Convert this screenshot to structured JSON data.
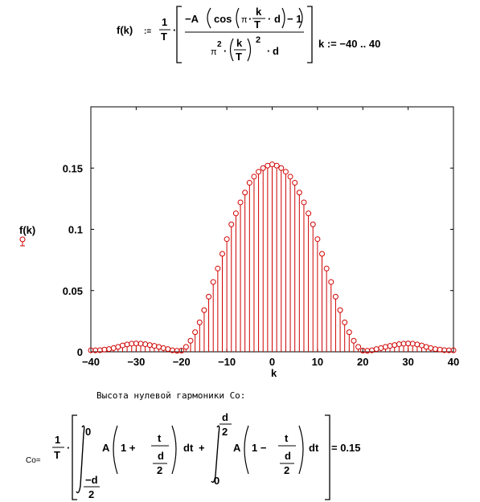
{
  "formula": {
    "fname": "f(k)",
    "assign": ":=",
    "one": "1",
    "T": "T",
    "numer_a": "−A",
    "cos": "cos",
    "pi": "π",
    "k": "k",
    "d": "d",
    "minus_one": "− 1",
    "pi2": "π",
    "exp2": "2",
    "exp2b": "2",
    "range": "k := −40 ..  40"
  },
  "chart_data": {
    "type": "scatter",
    "style": "stem",
    "ylabel": "f(k)",
    "xlabel": "k",
    "xlim": [
      -40,
      40
    ],
    "ylim": [
      0,
      0.2
    ],
    "xticks": [
      "−40",
      "−30",
      "−20",
      "−10",
      "0",
      "10",
      "20",
      "30",
      "40"
    ],
    "yticks": [
      "0",
      "0.05",
      "0.1",
      "0.15"
    ],
    "series": [
      {
        "color": "#d00000",
        "x": [
          -40,
          -39,
          -38,
          -37,
          -36,
          -35,
          -34,
          -33,
          -32,
          -31,
          -30,
          -29,
          -28,
          -27,
          -26,
          -25,
          -24,
          -23,
          -22,
          -21,
          -20,
          -19,
          -18,
          -17,
          -16,
          -15,
          -14,
          -13,
          -12,
          -11,
          -10,
          -9,
          -8,
          -7,
          -6,
          -5,
          -4,
          -3,
          -2,
          -1,
          0,
          1,
          2,
          3,
          4,
          5,
          6,
          7,
          8,
          9,
          10,
          11,
          12,
          13,
          14,
          15,
          16,
          17,
          18,
          19,
          20,
          21,
          22,
          23,
          24,
          25,
          26,
          27,
          28,
          29,
          30,
          31,
          32,
          33,
          34,
          35,
          36,
          37,
          38,
          39,
          40
        ],
        "y": [
          0.0012,
          0.0012,
          0.0013,
          0.0018,
          0.0022,
          0.003,
          0.004,
          0.0052,
          0.006,
          0.0066,
          0.0068,
          0.0066,
          0.0062,
          0.0055,
          0.0048,
          0.004,
          0.003,
          0.0022,
          0.0012,
          0.0008,
          0.001,
          0.004,
          0.009,
          0.016,
          0.024,
          0.034,
          0.045,
          0.057,
          0.068,
          0.08,
          0.092,
          0.104,
          0.113,
          0.122,
          0.13,
          0.138,
          0.143,
          0.147,
          0.15,
          0.152,
          0.153,
          0.152,
          0.15,
          0.147,
          0.143,
          0.138,
          0.13,
          0.122,
          0.113,
          0.104,
          0.092,
          0.08,
          0.068,
          0.057,
          0.045,
          0.034,
          0.024,
          0.016,
          0.009,
          0.004,
          0.001,
          0.0008,
          0.0012,
          0.0022,
          0.003,
          0.004,
          0.0048,
          0.0055,
          0.0062,
          0.0066,
          0.0068,
          0.0066,
          0.006,
          0.0052,
          0.004,
          0.003,
          0.0022,
          0.0018,
          0.0013,
          0.0012,
          0.0012
        ]
      }
    ]
  },
  "note": "Высота нулевой гармоники Co:",
  "co": {
    "label": "Co=",
    "one": "1",
    "T": "T",
    "upper0": "0",
    "minus_d": "−d",
    "two": "2",
    "A": "A",
    "one_plus": "1 +",
    "one_minus": "1 −",
    "t": "t",
    "d": "d",
    "dt": "dt",
    "plus": "+",
    "lower0": "0",
    "result": "= 0.15"
  }
}
